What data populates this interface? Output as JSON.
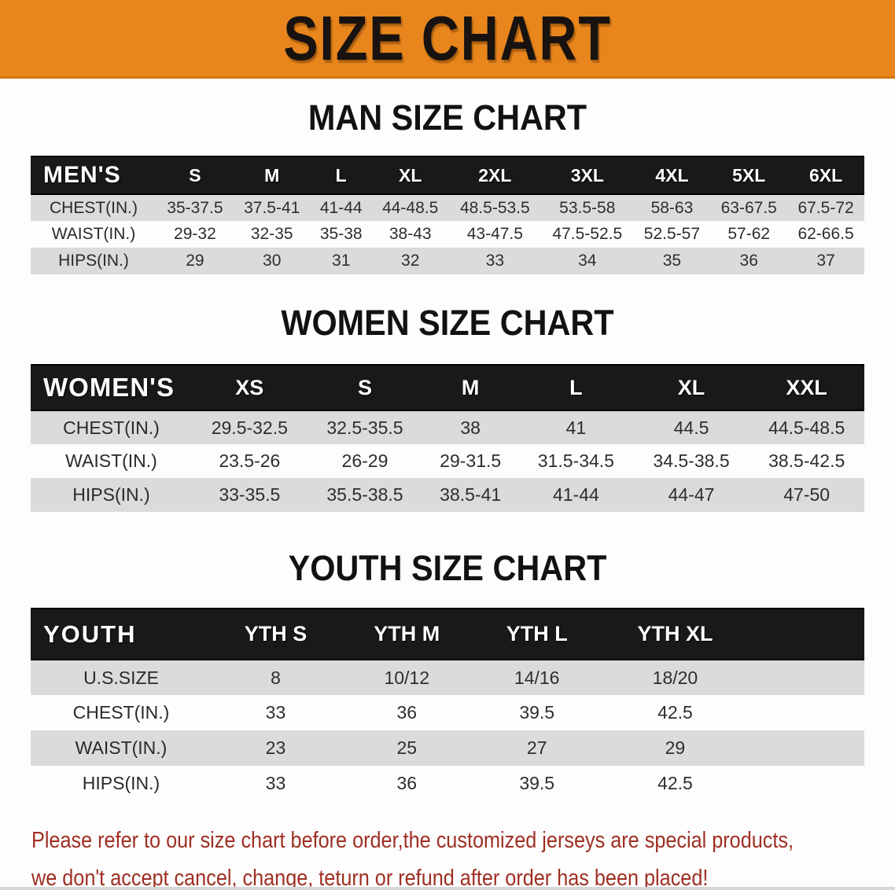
{
  "banner": {
    "title": "SIZE CHART"
  },
  "colors": {
    "banner_bg": "#E8861D",
    "header_band": "#191919",
    "row_stripe": "#DBDBDB",
    "disclaimer_red": "#9E2F23"
  },
  "sections": [
    {
      "heading": "MAN SIZE CHART",
      "label": "MEN'S",
      "columns": [
        "S",
        "M",
        "L",
        "XL",
        "2XL",
        "3XL",
        "4XL",
        "5XL",
        "6XL"
      ],
      "rows": [
        {
          "label": "CHEST(IN.)",
          "values": [
            "35-37.5",
            "37.5-41",
            "41-44",
            "44-48.5",
            "48.5-53.5",
            "53.5-58",
            "58-63",
            "63-67.5",
            "67.5-72"
          ]
        },
        {
          "label": "WAIST(IN.)",
          "values": [
            "29-32",
            "32-35",
            "35-38",
            "38-43",
            "43-47.5",
            "47.5-52.5",
            "52.5-57",
            "57-62",
            "62-66.5"
          ]
        },
        {
          "label": "HIPS(IN.)",
          "values": [
            "29",
            "30",
            "31",
            "32",
            "33",
            "34",
            "35",
            "36",
            "37"
          ]
        }
      ]
    },
    {
      "heading": "WOMEN SIZE CHART",
      "label": "WOMEN'S",
      "columns": [
        "XS",
        "S",
        "M",
        "L",
        "XL",
        "XXL"
      ],
      "rows": [
        {
          "label": "CHEST(IN.)",
          "values": [
            "29.5-32.5",
            "32.5-35.5",
            "38",
            "41",
            "44.5",
            "44.5-48.5"
          ]
        },
        {
          "label": "WAIST(IN.)",
          "values": [
            "23.5-26",
            "26-29",
            "29-31.5",
            "31.5-34.5",
            "34.5-38.5",
            "38.5-42.5"
          ]
        },
        {
          "label": "HIPS(IN.)",
          "values": [
            "33-35.5",
            "35.5-38.5",
            "38.5-41",
            "41-44",
            "44-47",
            "47-50"
          ]
        }
      ]
    },
    {
      "heading": "YOUTH SIZE CHART",
      "label": "YOUTH",
      "columns": [
        "YTH S",
        "YTH M",
        "YTH L",
        "YTH XL"
      ],
      "rows": [
        {
          "label": "U.S.SIZE",
          "values": [
            "8",
            "10/12",
            "14/16",
            "18/20"
          ]
        },
        {
          "label": "CHEST(IN.)",
          "values": [
            "33",
            "36",
            "39.5",
            "42.5"
          ]
        },
        {
          "label": "WAIST(IN.)",
          "values": [
            "23",
            "25",
            "27",
            "29"
          ]
        },
        {
          "label": "HIPS(IN.)",
          "values": [
            "33",
            "36",
            "39.5",
            "42.5"
          ]
        }
      ]
    }
  ],
  "disclaimer": {
    "lines": [
      "Please refer to our size chart before order,the customized jerseys are special products,",
      "we don't accept cancel, change, teturn or refund after order has been placed!"
    ]
  }
}
